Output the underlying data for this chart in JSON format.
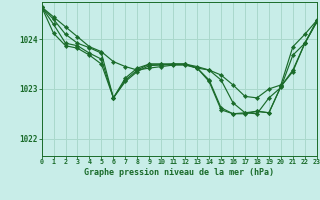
{
  "background_color": "#c8ede8",
  "grid_color": "#aad8cc",
  "line_color": "#1a6b2a",
  "marker_color": "#1a6b2a",
  "title": "Graphe pression niveau de la mer (hPa)",
  "xlim": [
    0,
    23
  ],
  "ylim": [
    1021.65,
    1024.75
  ],
  "yticks": [
    1022,
    1023,
    1024
  ],
  "xticks": [
    0,
    1,
    2,
    3,
    4,
    5,
    6,
    7,
    8,
    9,
    10,
    11,
    12,
    13,
    14,
    15,
    16,
    17,
    18,
    19,
    20,
    21,
    22,
    23
  ],
  "series": [
    [
      1024.65,
      1024.45,
      1024.25,
      1024.05,
      1023.85,
      1023.75,
      1023.55,
      1023.45,
      1023.38,
      1023.42,
      1023.45,
      1023.48,
      1023.48,
      1023.42,
      1023.38,
      1023.28,
      1023.08,
      1022.85,
      1022.82,
      1023.0,
      1023.08,
      1023.85,
      1024.1,
      1024.38
    ],
    [
      1024.65,
      1024.4,
      1024.1,
      1023.92,
      1023.83,
      1023.72,
      1022.82,
      1023.15,
      1023.35,
      1023.47,
      1023.48,
      1023.5,
      1023.5,
      1023.45,
      1023.38,
      1023.18,
      1022.72,
      1022.52,
      1022.5,
      1022.82,
      1023.03,
      1023.68,
      1023.92,
      1024.35
    ],
    [
      1024.65,
      1024.3,
      1023.92,
      1023.87,
      1023.72,
      1023.6,
      1022.82,
      1023.18,
      1023.38,
      1023.5,
      1023.5,
      1023.5,
      1023.5,
      1023.42,
      1023.18,
      1022.62,
      1022.5,
      1022.52,
      1022.55,
      1022.52,
      1023.05,
      1023.38,
      1023.92,
      1024.35
    ],
    [
      1024.65,
      1024.12,
      1023.87,
      1023.82,
      1023.68,
      1023.5,
      1022.82,
      1023.22,
      1023.42,
      1023.5,
      1023.5,
      1023.5,
      1023.5,
      1023.42,
      1023.15,
      1022.58,
      1022.5,
      1022.5,
      1022.55,
      1022.52,
      1023.05,
      1023.35,
      1023.92,
      1024.38
    ]
  ]
}
